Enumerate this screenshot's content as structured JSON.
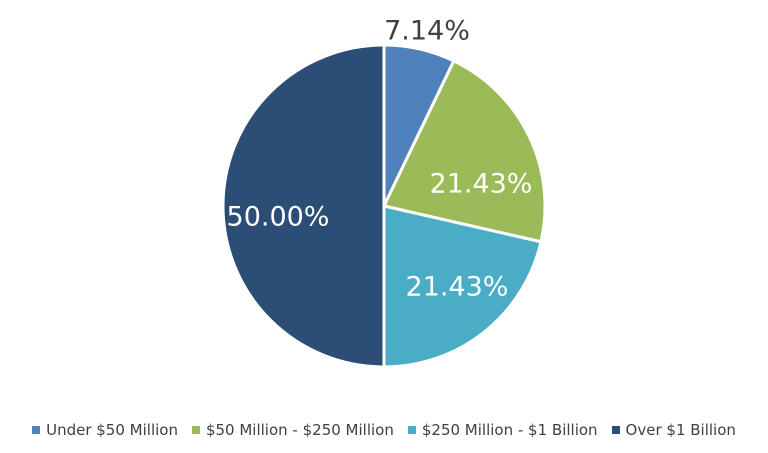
{
  "chart_data": {
    "type": "pie",
    "title": "",
    "categories": [
      "Under $50 Million",
      "$50 Million - $250 Million",
      "$250 Million - $1 Billion",
      "Over $1 Billion"
    ],
    "values": [
      7.14,
      21.43,
      21.43,
      50.0
    ],
    "labels": [
      "7.14%",
      "21.43%",
      "21.43%",
      "50.00%"
    ],
    "colors": [
      "#4f81bd",
      "#9bbb59",
      "#4bacc6",
      "#2c4d75"
    ],
    "label_colors": [
      "#404040",
      "#ffffff",
      "#ffffff",
      "#ffffff"
    ],
    "legend_placement": "bottom"
  }
}
